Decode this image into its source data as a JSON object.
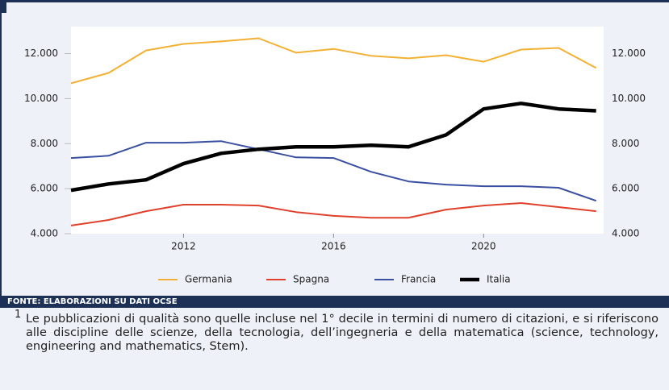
{
  "chart_data": {
    "type": "line",
    "x": [
      2009,
      2010,
      2011,
      2012,
      2013,
      2014,
      2015,
      2016,
      2017,
      2018,
      2019,
      2020,
      2021,
      2022,
      2023
    ],
    "xlim": [
      2009,
      2023.2
    ],
    "xticks": [
      2012,
      2016,
      2020
    ],
    "ylim": [
      4000,
      13200
    ],
    "yticks": [
      {
        "value": 4000,
        "label": "4.000"
      },
      {
        "value": 6000,
        "label": "6.000"
      },
      {
        "value": 8000,
        "label": "8.000"
      },
      {
        "value": 10000,
        "label": "10.000"
      },
      {
        "value": 12000,
        "label": "12.000"
      }
    ],
    "y2lim": [
      4000,
      13200
    ],
    "y2ticks": [
      {
        "value": 4000,
        "label": "4.000"
      },
      {
        "value": 6000,
        "label": "6.000"
      },
      {
        "value": 8000,
        "label": "8.000"
      },
      {
        "value": 10000,
        "label": "10.000"
      },
      {
        "value": 12000,
        "label": "12.000"
      }
    ],
    "grid": false,
    "legend": "bottom",
    "series": [
      {
        "name": "Germania",
        "color": "#f2b134",
        "values": [
          10680,
          11140,
          12140,
          12430,
          12540,
          12680,
          12040,
          12210,
          11900,
          11790,
          11930,
          11640,
          12180,
          12250,
          11360
        ]
      },
      {
        "name": "Spagna",
        "color": "#e0412c",
        "values": [
          4360,
          4610,
          5000,
          5290,
          5290,
          5250,
          4960,
          4790,
          4710,
          4710,
          5070,
          5250,
          5360,
          5180,
          5000
        ]
      },
      {
        "name": "Francia",
        "color": "#3a4fa0",
        "values": [
          7360,
          7460,
          8040,
          8040,
          8110,
          7750,
          7390,
          7360,
          6750,
          6320,
          6180,
          6110,
          6110,
          6040,
          5460
        ]
      },
      {
        "name": "Italia",
        "color": "#000000",
        "values": [
          5930,
          6210,
          6390,
          7110,
          7570,
          7750,
          7860,
          7860,
          7930,
          7860,
          8390,
          9540,
          9790,
          9540,
          9460
        ]
      }
    ]
  },
  "source": "FONTE: ELABORAZIONI SU DATI OCSE",
  "footnote": {
    "marker": "1",
    "text": "Le pubblicazioni di qualità sono quelle incluse nel 1° decile in termini di numero di citazioni, e si riferiscono alle discipline delle scienze, della tecnologia, dell’ingegneria e della matematica (science, technology, engineering and mathematics, Stem)."
  }
}
